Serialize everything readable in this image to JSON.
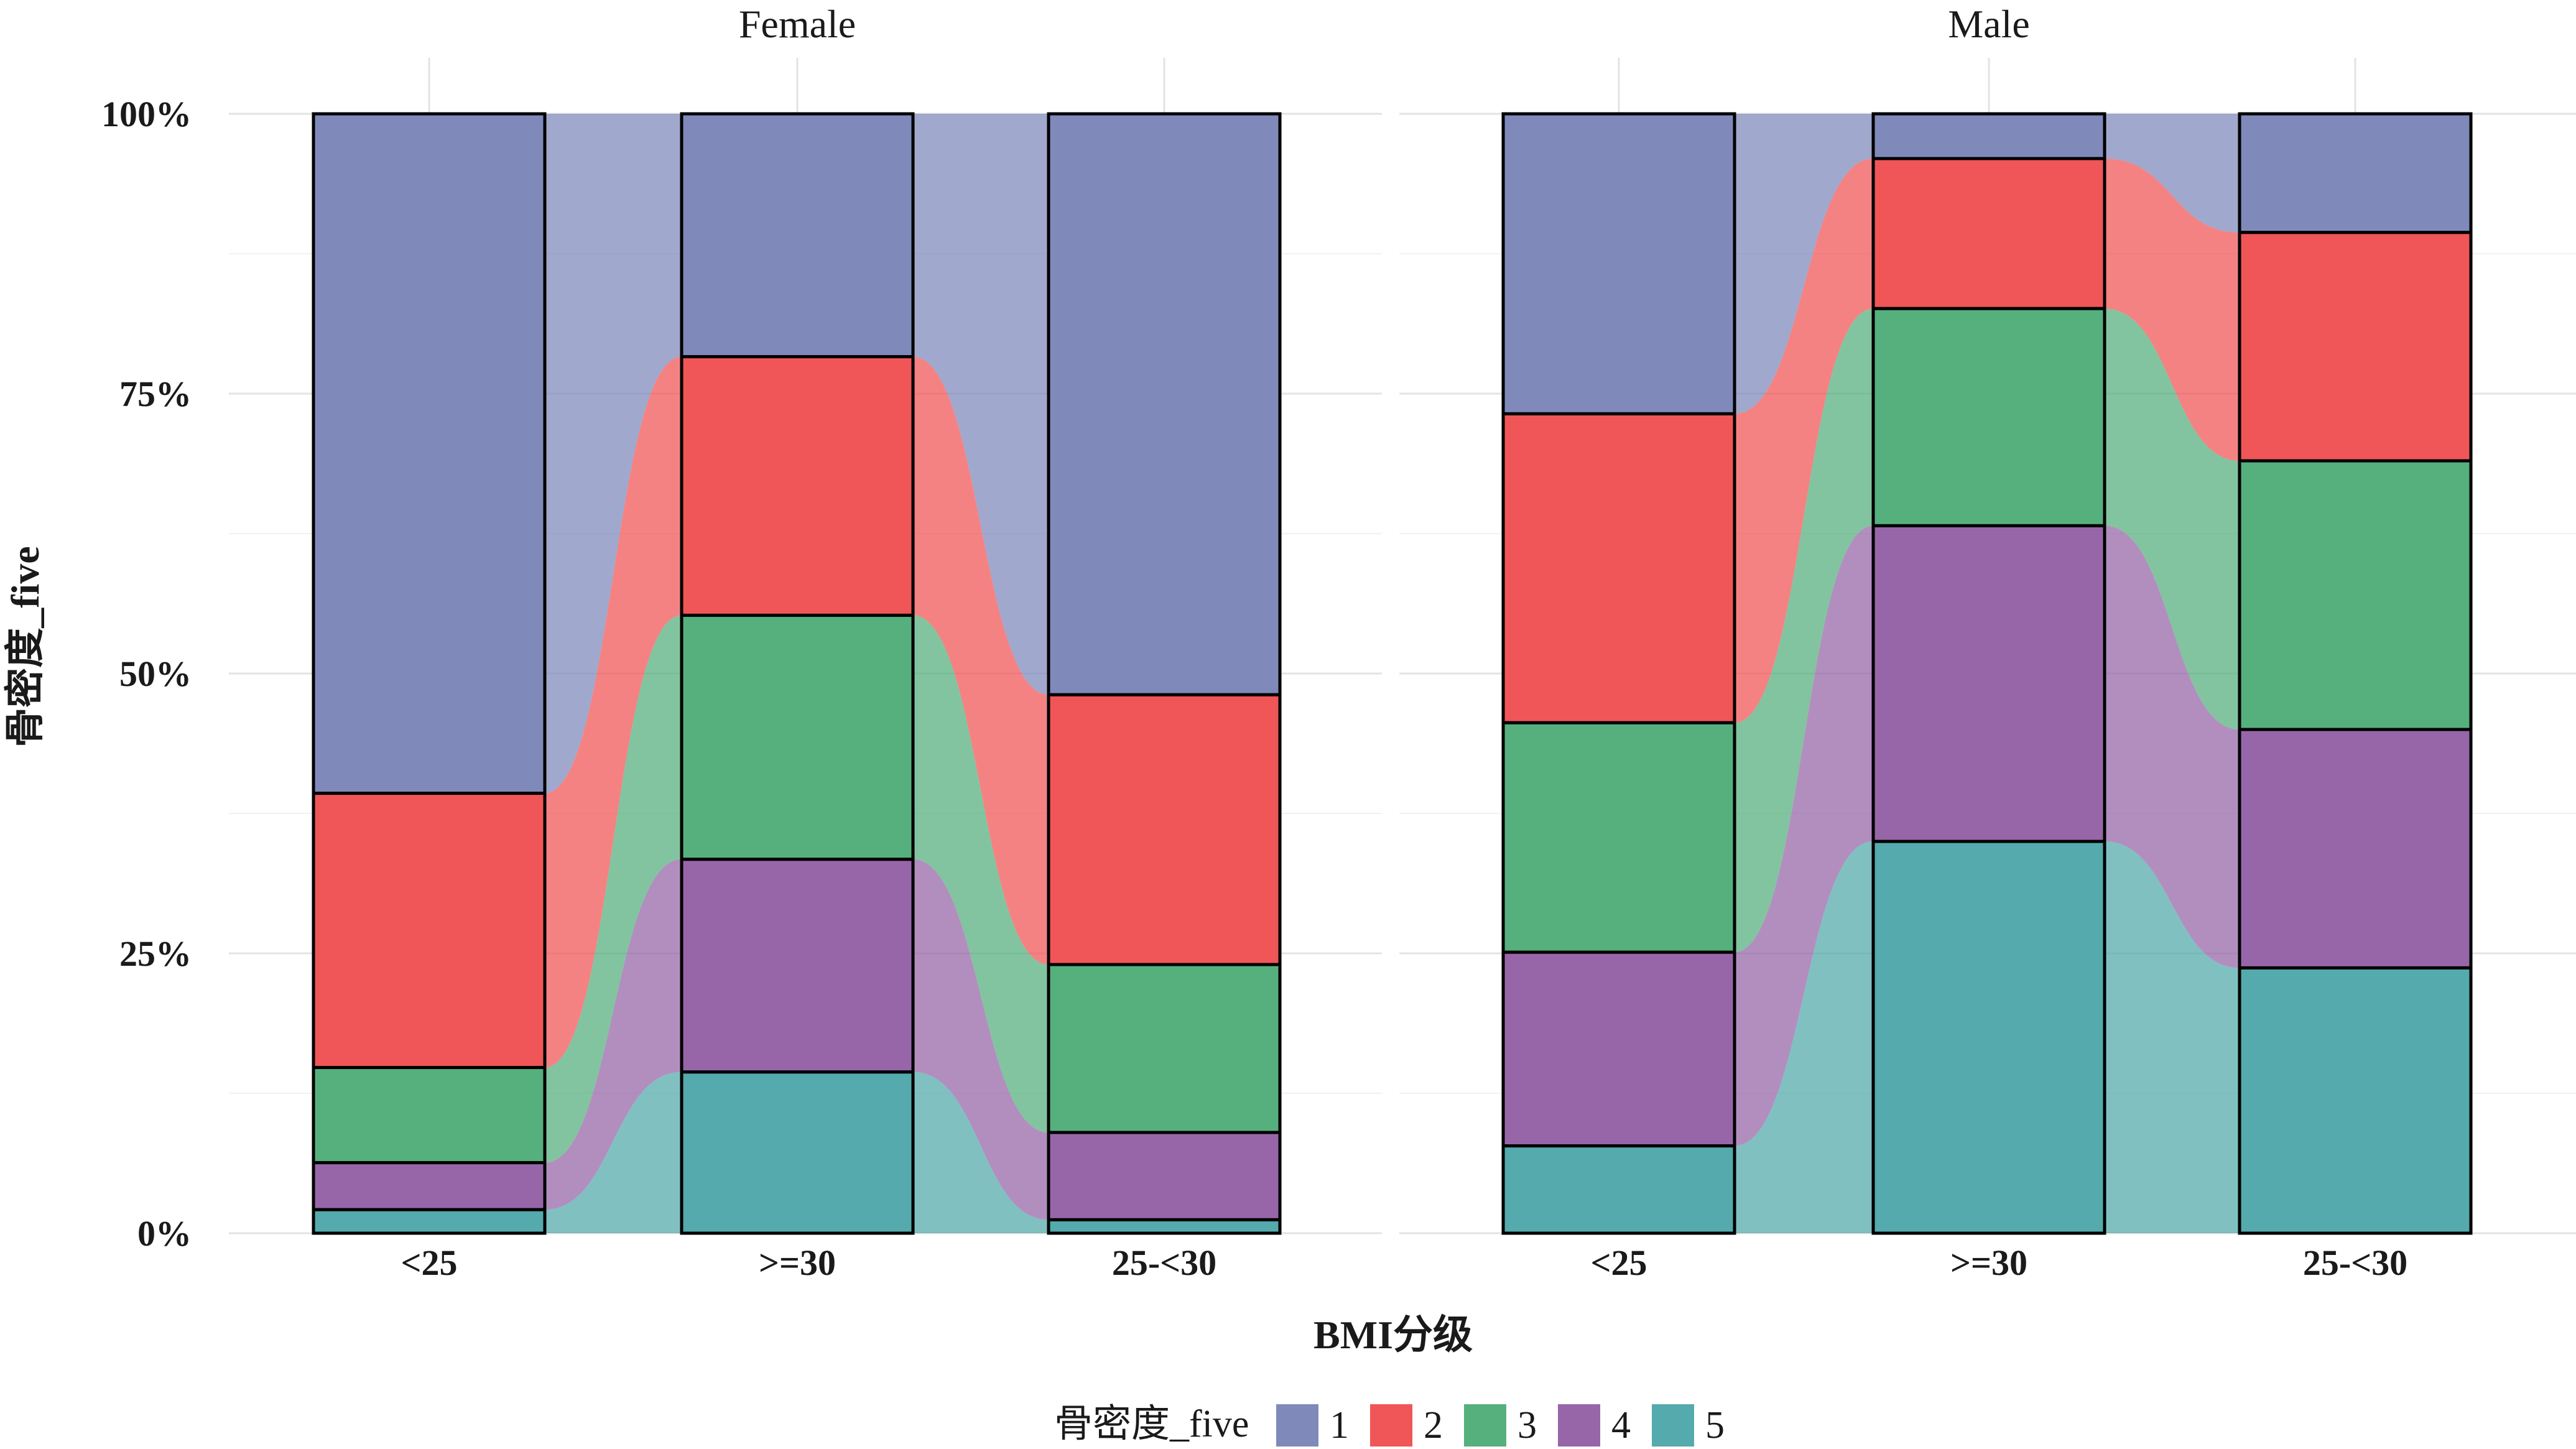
{
  "chart_data": {
    "type": "bar",
    "subtype": "stacked-percent-alluvial",
    "xlabel": "BMI分级",
    "ylabel": "骨密度_five",
    "ylim": [
      0,
      1
    ],
    "y_ticks": [
      "0%",
      "25%",
      "50%",
      "75%",
      "100%"
    ],
    "y_tick_values": [
      0,
      0.25,
      0.5,
      0.75,
      1.0
    ],
    "categories": [
      "<25",
      ">=30",
      "25-<30"
    ],
    "legend": {
      "title": "骨密度_five",
      "position": "bottom",
      "entries": [
        "1",
        "2",
        "3",
        "4",
        "5"
      ]
    },
    "colors": {
      "1": "#7f8abb",
      "2": "#f05657",
      "3": "#56b07e",
      "4": "#9766a9",
      "5": "#54aaac"
    },
    "grid": true,
    "panels": [
      {
        "name": "Female",
        "series": [
          {
            "name": "1",
            "values": [
              0.607,
              0.217,
              0.519
            ]
          },
          {
            "name": "2",
            "values": [
              0.245,
              0.231,
              0.241
            ]
          },
          {
            "name": "3",
            "values": [
              0.085,
              0.218,
              0.15
            ]
          },
          {
            "name": "4",
            "values": [
              0.042,
              0.19,
              0.078
            ]
          },
          {
            "name": "5",
            "values": [
              0.021,
              0.144,
              0.012
            ]
          }
        ]
      },
      {
        "name": "Male",
        "series": [
          {
            "name": "1",
            "values": [
              0.268,
              0.04,
              0.106
            ]
          },
          {
            "name": "2",
            "values": [
              0.276,
              0.134,
              0.204
            ]
          },
          {
            "name": "3",
            "values": [
              0.205,
              0.194,
              0.24
            ]
          },
          {
            "name": "4",
            "values": [
              0.173,
              0.282,
              0.213
            ]
          },
          {
            "name": "5",
            "values": [
              0.078,
              0.35,
              0.237
            ]
          }
        ]
      }
    ]
  }
}
